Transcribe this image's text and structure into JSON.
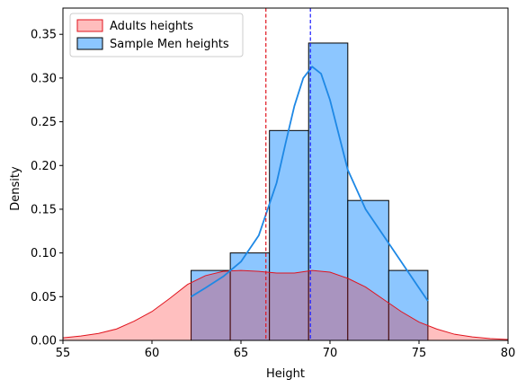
{
  "chart_data": {
    "type": "bar",
    "title": "",
    "xlabel": "Height",
    "ylabel": "Density",
    "xlim": [
      55,
      80
    ],
    "ylim": [
      0,
      0.38
    ],
    "xticks": [
      55,
      60,
      65,
      70,
      75,
      80
    ],
    "yticks": [
      0.0,
      0.05,
      0.1,
      0.15,
      0.2,
      0.25,
      0.3,
      0.35
    ],
    "grid": false,
    "legend_position": "top-left",
    "legend": [
      {
        "label": "Adults heights",
        "fill": "#ffbdbd",
        "edge": "#e0141e"
      },
      {
        "label": "Sample Men heights",
        "fill": "#8cc6ff",
        "edge": "#000000"
      }
    ],
    "series": [
      {
        "name": "Sample Men heights",
        "kind": "histogram",
        "color": "#8cc6ff",
        "edge_color": "#000000",
        "bins": [
          {
            "x0": 62.2,
            "x1": 64.4,
            "density": 0.08
          },
          {
            "x0": 64.4,
            "x1": 66.6,
            "density": 0.1
          },
          {
            "x0": 66.6,
            "x1": 68.8,
            "density": 0.24
          },
          {
            "x0": 68.8,
            "x1": 71.0,
            "density": 0.34
          },
          {
            "x0": 71.0,
            "x1": 73.3,
            "density": 0.16
          },
          {
            "x0": 73.3,
            "x1": 75.5,
            "density": 0.08
          }
        ]
      },
      {
        "name": "Sample Men heights",
        "kind": "kde_line",
        "color": "#1e88e5",
        "x": [
          62.2,
          63.0,
          64.0,
          65.0,
          66.0,
          67.0,
          67.5,
          68.0,
          68.5,
          69.0,
          69.5,
          70.0,
          70.5,
          71.0,
          72.0,
          73.0,
          74.0,
          75.0,
          75.5
        ],
        "y": [
          0.05,
          0.06,
          0.073,
          0.09,
          0.12,
          0.18,
          0.225,
          0.268,
          0.3,
          0.313,
          0.305,
          0.275,
          0.235,
          0.195,
          0.15,
          0.12,
          0.09,
          0.06,
          0.045
        ]
      },
      {
        "name": "Adults heights",
        "kind": "kde_area",
        "color": "#ffbdbd",
        "edge_color": "#e0141e",
        "x": [
          55.0,
          56.0,
          57.0,
          58.0,
          59.0,
          60.0,
          61.0,
          62.0,
          63.0,
          64.0,
          65.0,
          66.0,
          67.0,
          68.0,
          69.0,
          70.0,
          71.0,
          72.0,
          73.0,
          74.0,
          75.0,
          76.0,
          77.0,
          78.0,
          79.0,
          80.0
        ],
        "y": [
          0.003,
          0.005,
          0.008,
          0.013,
          0.022,
          0.033,
          0.048,
          0.064,
          0.074,
          0.079,
          0.08,
          0.079,
          0.077,
          0.077,
          0.08,
          0.078,
          0.071,
          0.061,
          0.047,
          0.033,
          0.021,
          0.013,
          0.007,
          0.004,
          0.002,
          0.001
        ]
      }
    ],
    "reference_lines": [
      {
        "name": "Adults heights mean",
        "x": 66.4,
        "color": "#e0141e",
        "style": "dashed"
      },
      {
        "name": "Sample Men heights mean",
        "x": 68.9,
        "color": "#1a1aff",
        "style": "dashed"
      }
    ]
  }
}
